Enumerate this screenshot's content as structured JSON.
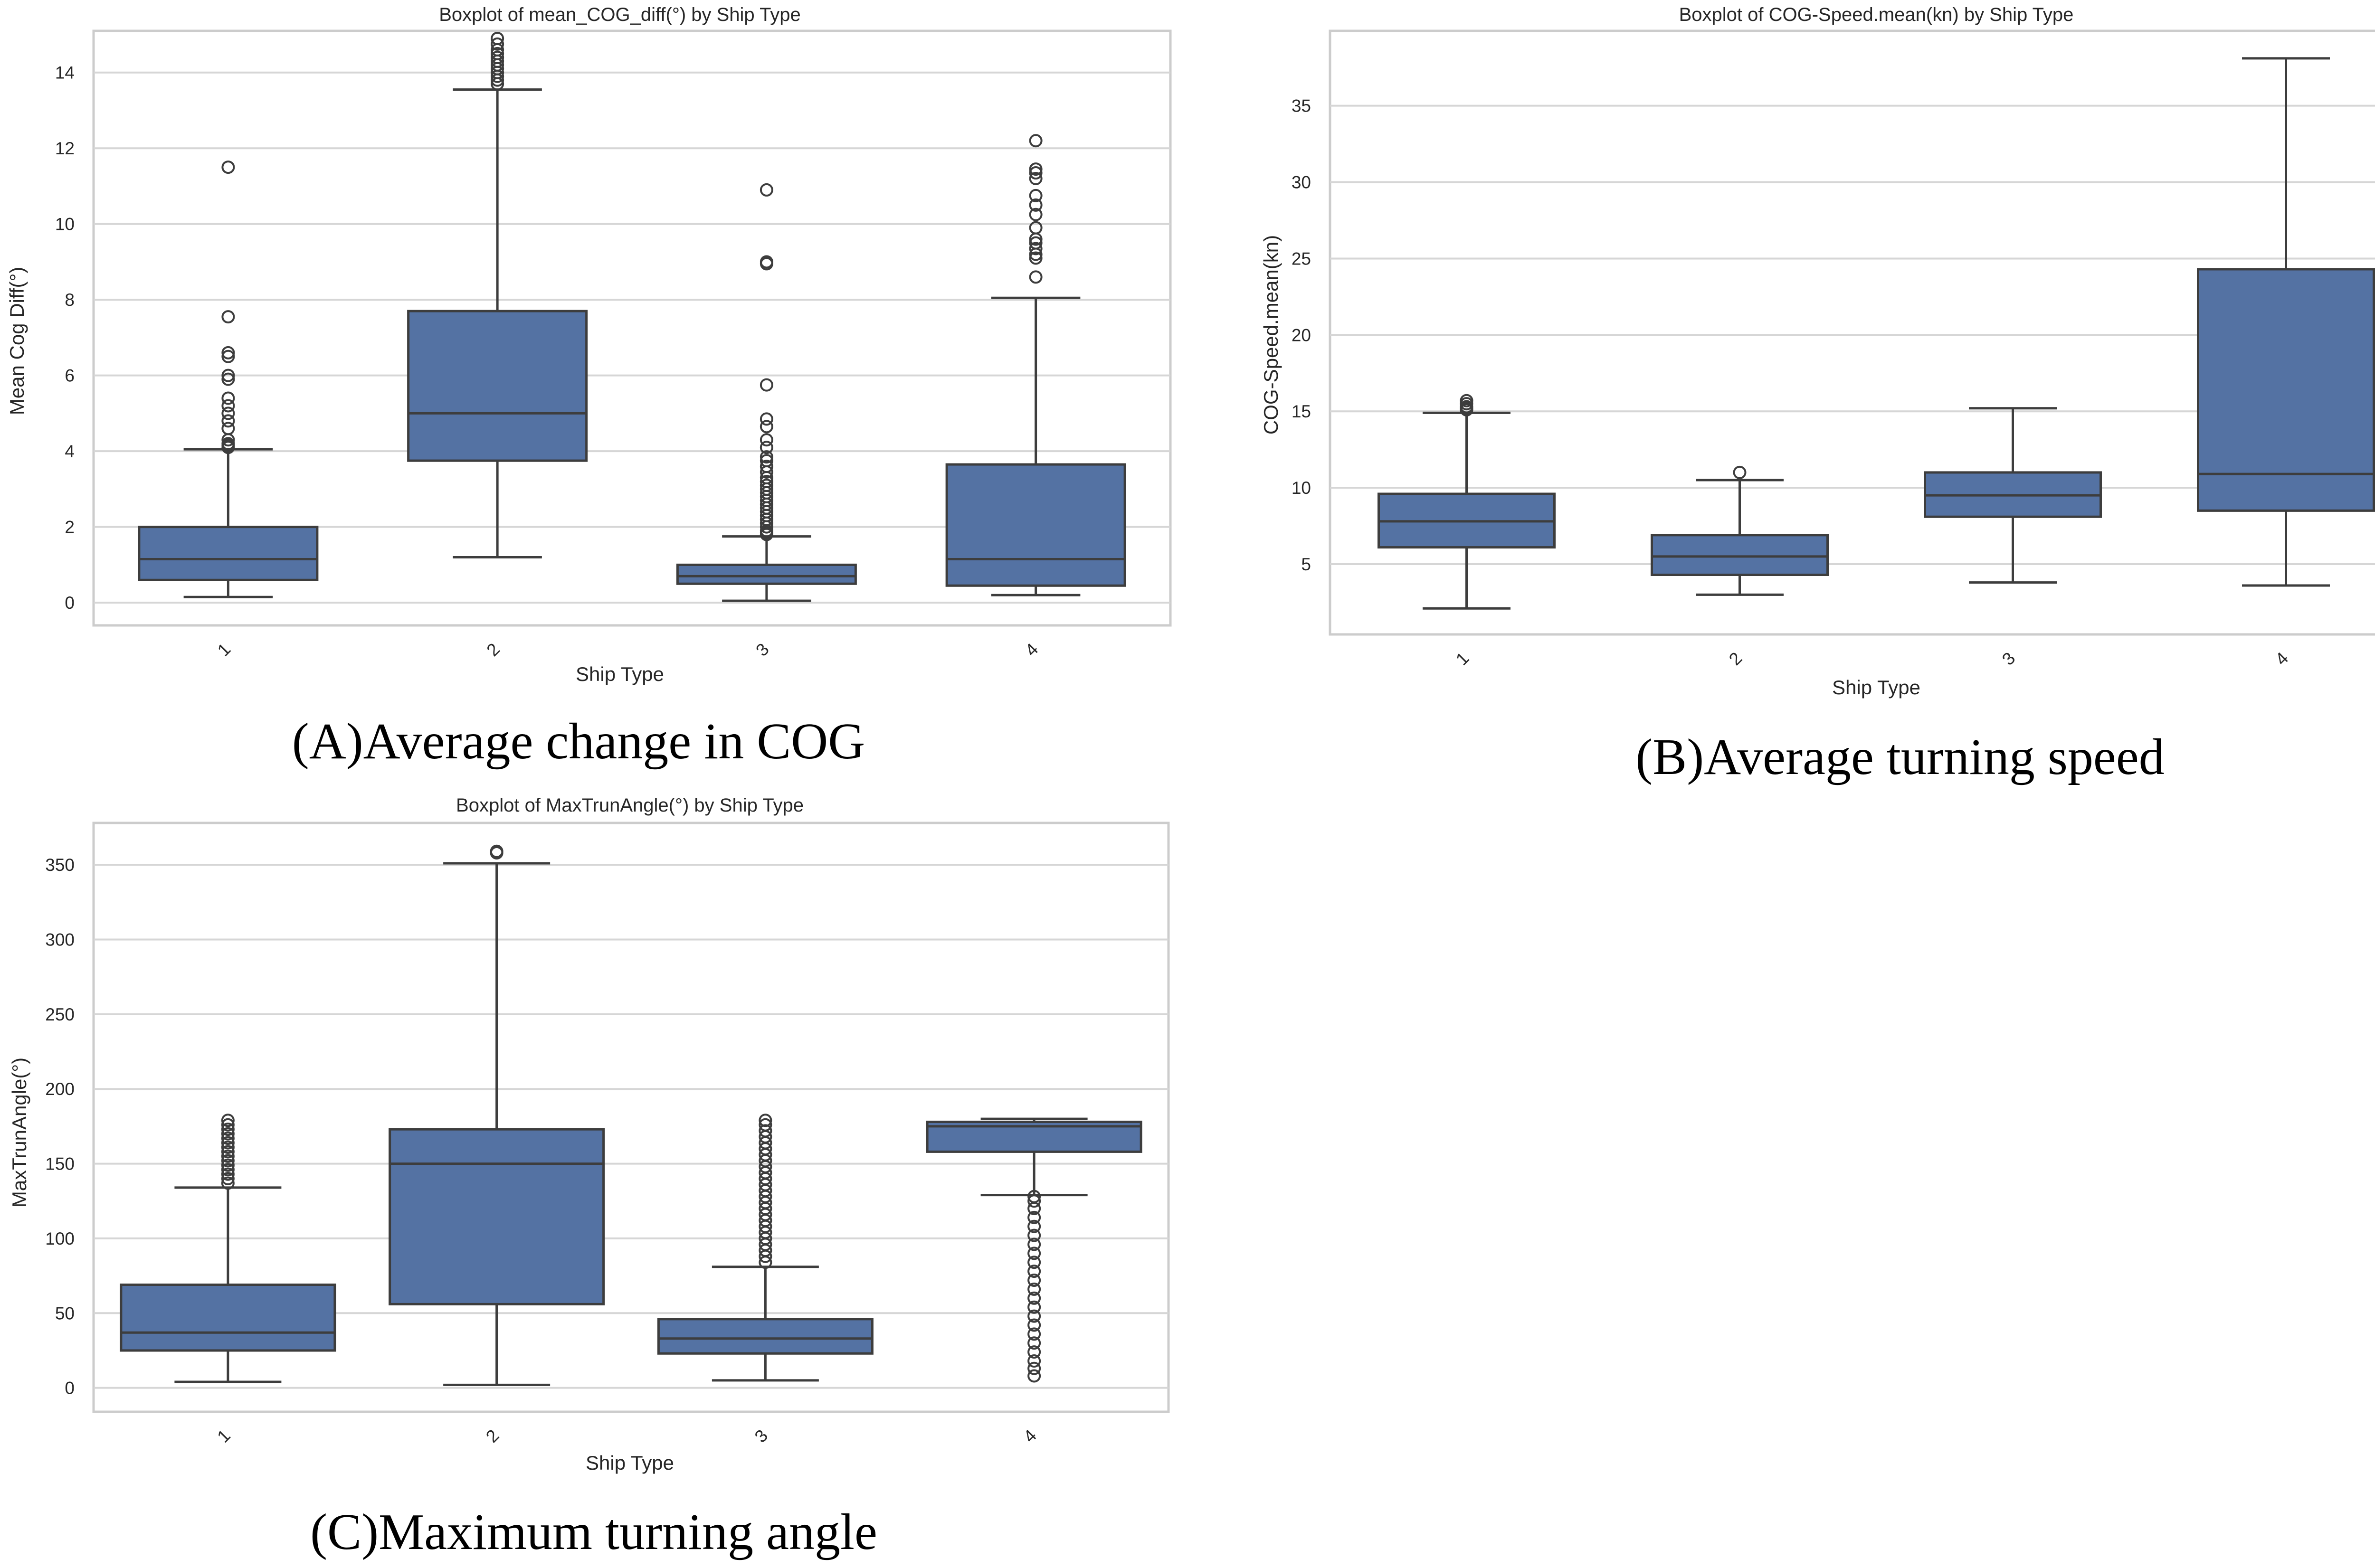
{
  "style": {
    "box_fill": "#5472a3",
    "line_color": "#3d3d3d",
    "grid_color": "#d6d6d6",
    "frame_color": "#cccccc"
  },
  "chart_data": [
    {
      "type": "box",
      "id": "A",
      "title": "Boxplot of mean_COG_diff(°) by Ship Type",
      "xlabel": "Ship Type",
      "ylabel": "Mean Cog Diff(°)",
      "caption": "(A)Average change in COG",
      "ylim": [
        -0.6,
        15.1
      ],
      "yticks": [
        0,
        2,
        4,
        6,
        8,
        10,
        12,
        14
      ],
      "categories": [
        "1",
        "2",
        "3",
        "4"
      ],
      "boxes": [
        {
          "category": "1",
          "whisker_low": 0.15,
          "q1": 0.6,
          "median": 1.15,
          "q3": 2.0,
          "whisker_high": 4.05,
          "outliers": [
            4.1,
            4.15,
            4.2,
            4.3,
            4.6,
            4.8,
            5.0,
            5.2,
            5.4,
            5.9,
            6.0,
            6.5,
            6.6,
            7.55,
            11.5
          ]
        },
        {
          "category": "2",
          "whisker_low": 1.2,
          "q1": 3.75,
          "median": 5.0,
          "q3": 7.7,
          "whisker_high": 13.55,
          "outliers": [
            13.7,
            13.8,
            13.9,
            14.0,
            14.1,
            14.2,
            14.3,
            14.4,
            14.5,
            14.6,
            14.75,
            14.9
          ]
        },
        {
          "category": "3",
          "whisker_low": 0.05,
          "q1": 0.5,
          "median": 0.7,
          "q3": 1.0,
          "whisker_high": 1.75,
          "outliers": [
            1.8,
            1.85,
            1.9,
            2.0,
            2.1,
            2.2,
            2.3,
            2.4,
            2.5,
            2.6,
            2.7,
            2.8,
            2.9,
            3.0,
            3.1,
            3.2,
            3.3,
            3.45,
            3.6,
            3.75,
            3.85,
            4.1,
            4.3,
            4.65,
            4.85,
            5.75,
            8.95,
            9.0,
            10.9
          ]
        },
        {
          "category": "4",
          "whisker_low": 0.2,
          "q1": 0.45,
          "median": 1.15,
          "q3": 3.65,
          "whisker_high": 8.05,
          "outliers": [
            8.6,
            9.1,
            9.2,
            9.35,
            9.5,
            9.6,
            9.9,
            10.25,
            10.5,
            10.75,
            11.2,
            11.35,
            11.45,
            12.2
          ]
        }
      ]
    },
    {
      "type": "box",
      "id": "B",
      "title": "Boxplot of COG-Speed.mean(kn) by Ship Type",
      "xlabel": "Ship Type",
      "ylabel": "COG-Speed.mean(kn)",
      "caption": "(B)Average turning speed",
      "ylim": [
        0.4,
        39.9
      ],
      "yticks": [
        5,
        10,
        15,
        20,
        25,
        30,
        35
      ],
      "categories": [
        "1",
        "2",
        "3",
        "4"
      ],
      "boxes": [
        {
          "category": "1",
          "whisker_low": 2.1,
          "q1": 6.1,
          "median": 7.8,
          "q3": 9.6,
          "whisker_high": 14.9,
          "outliers": [
            15.1,
            15.2,
            15.3,
            15.5,
            15.7
          ]
        },
        {
          "category": "2",
          "whisker_low": 3.0,
          "q1": 4.3,
          "median": 5.5,
          "q3": 6.9,
          "whisker_high": 10.5,
          "outliers": [
            11.0
          ]
        },
        {
          "category": "3",
          "whisker_low": 3.8,
          "q1": 8.1,
          "median": 9.5,
          "q3": 11.0,
          "whisker_high": 15.2,
          "outliers": []
        },
        {
          "category": "4",
          "whisker_low": 3.6,
          "q1": 8.5,
          "median": 10.9,
          "q3": 24.3,
          "whisker_high": 38.1,
          "outliers": []
        }
      ]
    },
    {
      "type": "box",
      "id": "C",
      "title": "Boxplot of MaxTrunAngle(°) by Ship Type",
      "xlabel": "Ship Type",
      "ylabel": "MaxTrunAngle(°)",
      "caption": "(C)Maximum turning angle",
      "ylim": [
        -16,
        378
      ],
      "yticks": [
        0,
        50,
        100,
        150,
        200,
        250,
        300,
        350
      ],
      "categories": [
        "1",
        "2",
        "3",
        "4"
      ],
      "boxes": [
        {
          "category": "1",
          "whisker_low": 4,
          "q1": 25,
          "median": 37,
          "q3": 69,
          "whisker_high": 134,
          "outliers": [
            137,
            140,
            143,
            146,
            149,
            152,
            155,
            158,
            161,
            164,
            167,
            170,
            173,
            176,
            179
          ]
        },
        {
          "category": "2",
          "whisker_low": 2,
          "q1": 56,
          "median": 150,
          "q3": 173,
          "whisker_high": 351,
          "outliers": [
            358,
            359
          ]
        },
        {
          "category": "3",
          "whisker_low": 5,
          "q1": 23,
          "median": 33,
          "q3": 46,
          "whisker_high": 81,
          "outliers": [
            84,
            88,
            92,
            96,
            100,
            104,
            108,
            112,
            116,
            120,
            124,
            128,
            132,
            136,
            140,
            144,
            148,
            152,
            156,
            160,
            164,
            168,
            172,
            176,
            179
          ]
        },
        {
          "category": "4",
          "whisker_low": 129,
          "q1": 158,
          "median": 175,
          "q3": 178,
          "whisker_high": 180,
          "outliers": [
            8,
            13,
            18,
            24,
            30,
            36,
            42,
            48,
            54,
            60,
            66,
            72,
            78,
            84,
            90,
            96,
            102,
            108,
            114,
            120,
            125,
            128
          ]
        }
      ]
    }
  ]
}
